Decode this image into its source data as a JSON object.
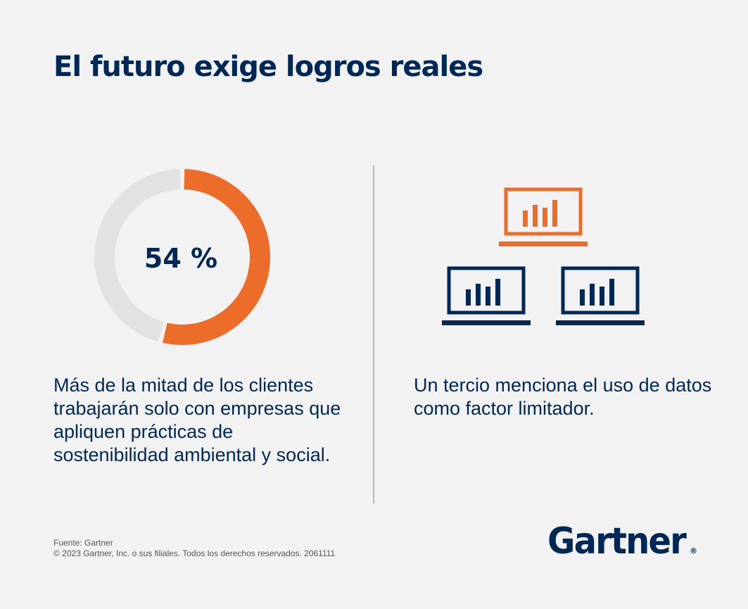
{
  "title": "El futuro exige logros reales",
  "chart_data": {
    "type": "pie",
    "variant": "donut",
    "values": [
      54,
      46
    ],
    "colors": [
      "#ec6c2a",
      "#e2e2e2"
    ],
    "center_label": "54 %"
  },
  "stats": {
    "left_text": "Más de la mitad de los clientes trabajarán solo con empresas que apliquen prácticas de sostenibilidad ambiental y social.",
    "right_text": "Un tercio menciona el uso de datos como factor limitador."
  },
  "icons": {
    "laptops": [
      "laptop-chart-icon",
      "laptop-chart-icon",
      "laptop-chart-icon"
    ],
    "laptop_colors": [
      "#ec6c2a",
      "#002856",
      "#002856"
    ]
  },
  "footer": {
    "source": "Fuente: Gartner",
    "copyright": "© 2023 Gartner, Inc. o sus filiales. Todos los derechos reservados. 2061111"
  },
  "logo": {
    "text": "Gartner",
    "mark": "®"
  },
  "colors": {
    "navy": "#002856",
    "orange": "#ec6c2a",
    "background": "#f2f2f2"
  }
}
